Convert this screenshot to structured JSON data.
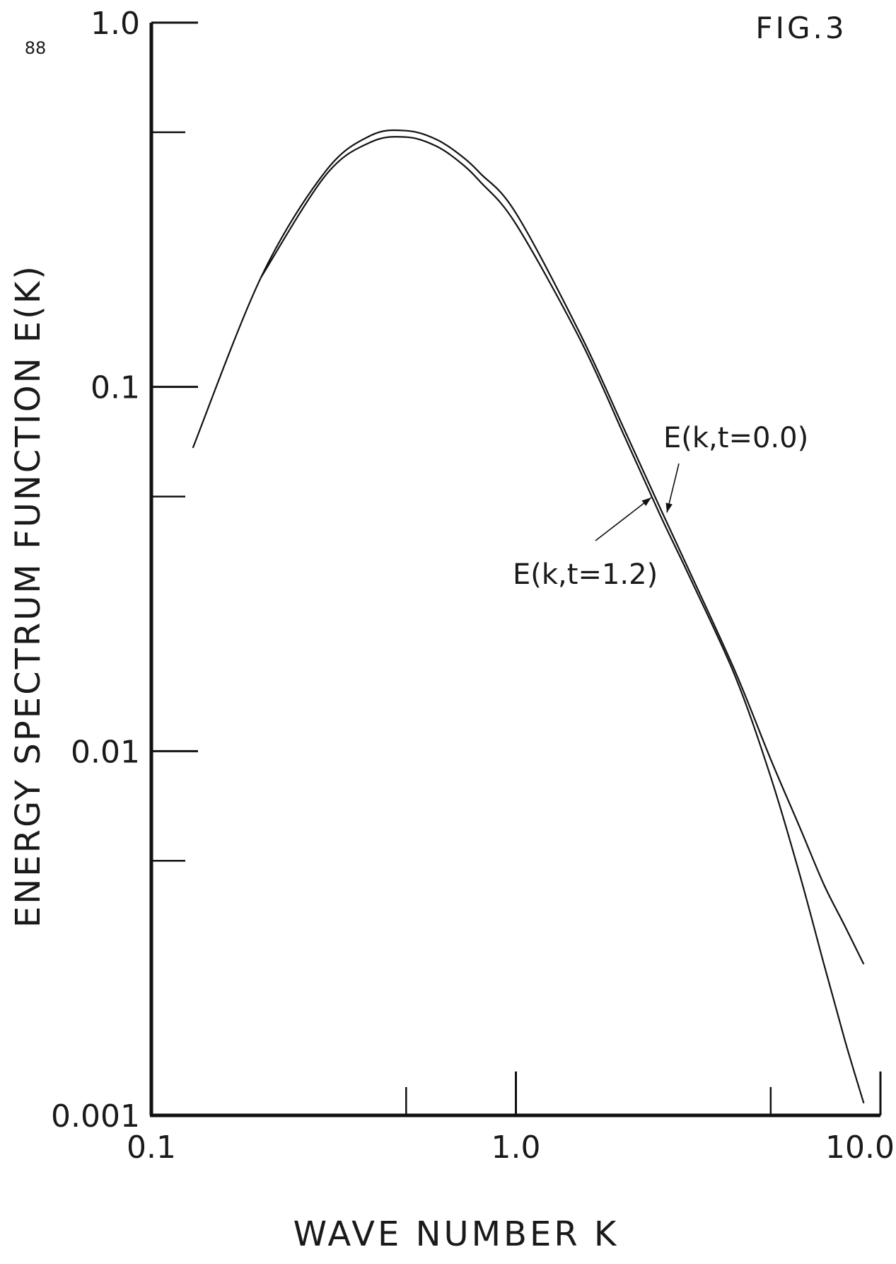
{
  "page_number": "88",
  "figure_label": "FIG.3",
  "chart_data": {
    "type": "line",
    "title": "",
    "xlabel": "WAVE NUMBER K",
    "ylabel": "ENERGY SPECTRUM FUNCTION E(K)",
    "x_scale": "log",
    "y_scale": "log",
    "xlim": [
      0.1,
      10.0
    ],
    "ylim": [
      0.001,
      1.0
    ],
    "x_ticks": [
      0.1,
      1.0,
      10.0
    ],
    "x_tick_labels": [
      "0.1",
      "1.0",
      "10.0"
    ],
    "x_minor_ticks": [
      0.5,
      5.0
    ],
    "y_ticks": [
      0.001,
      0.01,
      0.1,
      1.0
    ],
    "y_tick_labels": [
      "0.001",
      "0.01",
      "0.1",
      "1.0"
    ],
    "y_minor_ticks": [
      0.005,
      0.05,
      0.5
    ],
    "grid": false,
    "legend": "none",
    "series": [
      {
        "name": "E(k,t=0.0)",
        "x": [
          0.13,
          0.2,
          0.3,
          0.4,
          0.5,
          0.6,
          0.7,
          0.8,
          1.0,
          1.5,
          2.0,
          2.5,
          3.0,
          4.0,
          5.0,
          6.0,
          7.0,
          8.0,
          9.0
        ],
        "y": [
          0.068,
          0.2,
          0.39,
          0.49,
          0.505,
          0.48,
          0.435,
          0.385,
          0.3,
          0.14,
          0.075,
          0.046,
          0.031,
          0.0165,
          0.0095,
          0.0062,
          0.0043,
          0.0033,
          0.0026
        ]
      },
      {
        "name": "E(k,t=1.2)",
        "x": [
          0.2,
          0.3,
          0.4,
          0.5,
          0.6,
          0.7,
          0.8,
          1.0,
          1.5,
          2.0,
          2.5,
          3.0,
          4.0,
          5.0,
          6.0,
          7.0,
          8.0,
          9.0
        ],
        "y": [
          0.2,
          0.38,
          0.47,
          0.485,
          0.46,
          0.415,
          0.365,
          0.28,
          0.135,
          0.072,
          0.044,
          0.03,
          0.016,
          0.0085,
          0.0046,
          0.0026,
          0.0016,
          0.00108
        ]
      }
    ],
    "annotations": [
      {
        "text": "E(k,t=0.0)",
        "series": "E(k,t=0.0)",
        "point_x": 2.55,
        "point_y": 0.046
      },
      {
        "text": "E(k,t=1.2)",
        "series": "E(k,t=1.2)",
        "point_x": 2.35,
        "point_y": 0.051
      }
    ]
  }
}
